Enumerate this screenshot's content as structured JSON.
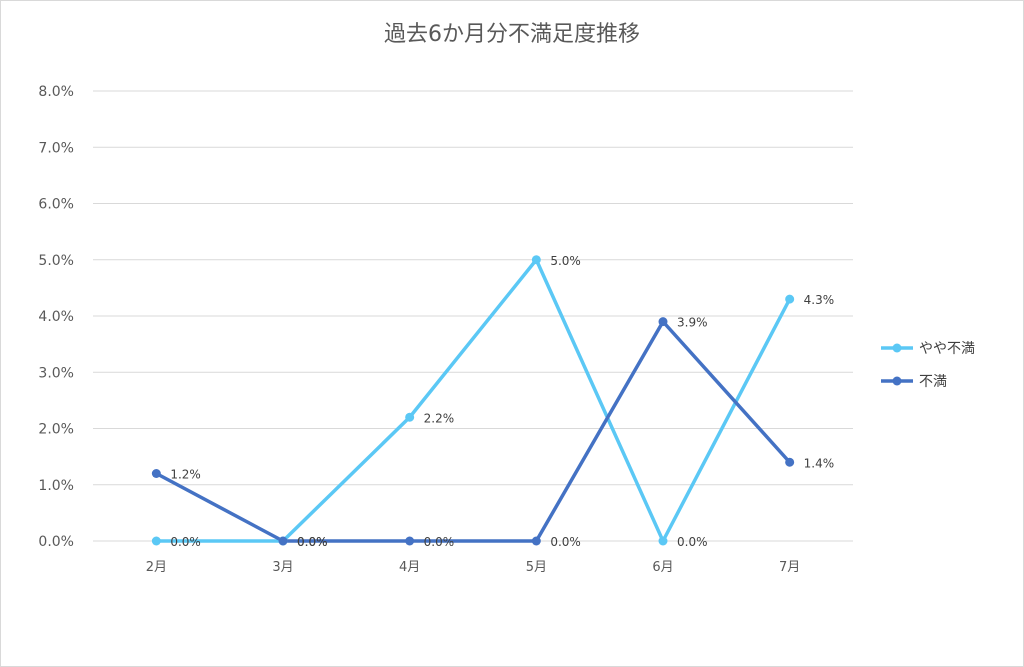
{
  "chart_data": {
    "type": "line",
    "title": "過去6か月分不満足度推移",
    "categories": [
      "2月",
      "3月",
      "4月",
      "5月",
      "6月",
      "7月"
    ],
    "ylim": [
      0,
      8
    ],
    "ytick_values": [
      0,
      1,
      2,
      3,
      4,
      5,
      6,
      7,
      8
    ],
    "yticks": [
      "0.0%",
      "1.0%",
      "2.0%",
      "3.0%",
      "4.0%",
      "5.0%",
      "6.0%",
      "7.0%",
      "8.0%"
    ],
    "grid": true,
    "legend_position": "right",
    "series": [
      {
        "name": "やや不満",
        "color": "#5bc8f5",
        "values": [
          0.0,
          0.0,
          2.2,
          5.0,
          0.0,
          4.3
        ],
        "labels": [
          "0.0%",
          "0.0%",
          "2.2%",
          "5.0%",
          "0.0%",
          "4.3%"
        ]
      },
      {
        "name": "不満",
        "color": "#4472c4",
        "values": [
          1.2,
          0.0,
          0.0,
          0.0,
          3.9,
          1.4
        ],
        "labels": [
          "1.2%",
          "0.0%",
          "0.0%",
          "0.0%",
          "3.9%",
          "1.4%"
        ]
      }
    ]
  }
}
